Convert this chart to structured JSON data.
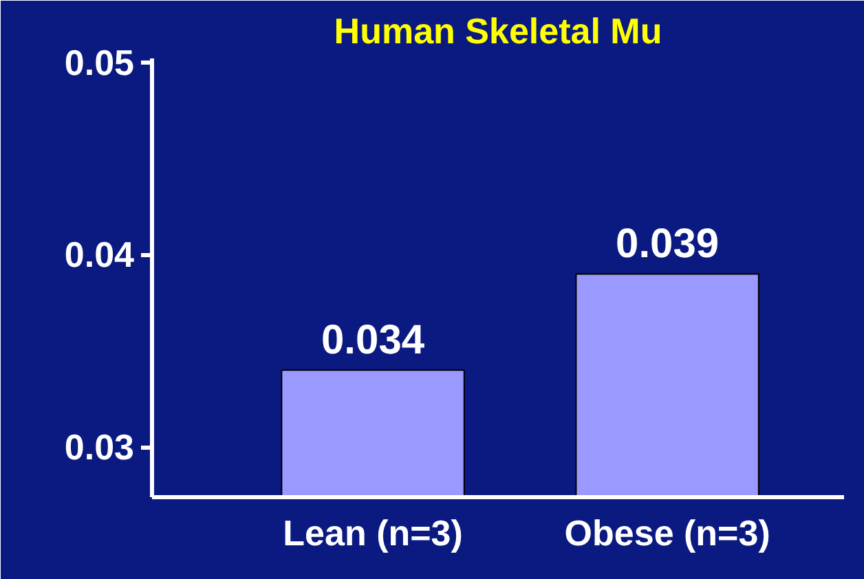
{
  "chart_data": {
    "type": "bar",
    "title": "Human Skeletal Mu",
    "categories": [
      "Lean (n=3)",
      "Obese (n=3)"
    ],
    "values": [
      0.034,
      0.039
    ],
    "color": "#9999ff",
    "ylim": [
      0.0274,
      0.0502
    ],
    "yticks": [
      0.03,
      0.04,
      0.05
    ],
    "data_labels": true,
    "grid": false
  }
}
